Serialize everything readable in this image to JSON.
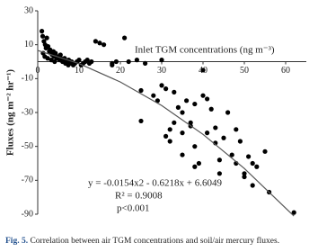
{
  "chart_data": {
    "type": "scatter",
    "y_label": "Fluxes (ng m⁻² hr⁻¹)",
    "x_label": "Inlet TGM concentrations (ng m⁻³)",
    "annotations": [
      "y = -0.0154x2 - 0.6218x + 6.6049",
      "R² = 0.9008",
      "p<0.001"
    ],
    "caption_label": "Fig. 5.",
    "caption": "Correlation between air TGM concentrations and soil/air mercury fluxes.",
    "xlim": [
      0,
      65
    ],
    "ylim": [
      -90,
      30
    ],
    "xticks": [
      0,
      10,
      20,
      30,
      40,
      50,
      60
    ],
    "yticks": [
      30,
      10,
      -10,
      -30,
      -50,
      -70,
      -90
    ],
    "color": "#000000",
    "x": [
      1,
      1.2,
      1.5,
      1.8,
      2,
      2.2,
      2.5,
      2.8,
      3,
      3.2,
      3.5,
      3.8,
      4,
      4.3,
      4.6,
      5,
      5.3,
      5.6,
      6,
      6.3,
      6.7,
      7,
      7.4,
      7.8,
      8.2,
      8.6,
      9,
      9.5,
      10,
      10.5,
      11,
      11.5,
      12,
      12.5,
      13,
      1.3,
      1.7,
      2.4,
      3.3,
      4.1,
      5.5,
      6.5,
      7.5,
      14,
      15,
      16,
      18,
      18,
      19,
      21,
      22,
      24,
      26,
      30,
      25,
      25,
      28,
      29,
      30,
      31,
      31,
      32,
      32,
      33,
      33,
      34,
      35,
      35,
      35,
      36,
      37,
      37,
      38,
      38,
      38,
      39,
      40,
      40,
      41,
      41,
      42,
      43,
      43,
      44,
      44,
      45,
      46,
      47,
      48,
      48,
      49,
      50,
      50,
      51,
      52,
      52,
      53,
      55,
      56,
      62
    ],
    "y": [
      18,
      15,
      12,
      10,
      8,
      14,
      9,
      6,
      7,
      5,
      4,
      6,
      3,
      5,
      2,
      3,
      1,
      2,
      0,
      1,
      -1,
      0,
      -2,
      -1,
      0,
      -2,
      -1,
      0,
      1,
      -2,
      -1,
      0,
      1,
      -1,
      0,
      5,
      3,
      2,
      1,
      0,
      4,
      2,
      1,
      12,
      11,
      10,
      -2,
      -1,
      0,
      14,
      0,
      1,
      -1,
      1,
      -17,
      -35,
      -20,
      -23,
      -14,
      -16,
      -44,
      -40,
      -47,
      -36,
      -18,
      -27,
      -30,
      -42,
      -55,
      -23,
      -36,
      -38,
      -25,
      -50,
      -62,
      -60,
      -5,
      -20,
      -22,
      -42,
      -28,
      -39,
      -48,
      -58,
      -66,
      -45,
      -30,
      -55,
      -40,
      -60,
      -47,
      -66,
      -68,
      -56,
      -60,
      -73,
      -62,
      -53,
      -77,
      -89
    ],
    "fit": {
      "x": [
        0,
        10,
        20,
        30,
        40,
        50,
        62
      ],
      "y": [
        6.6,
        -1.16,
        -12.0,
        -25.9,
        -42.9,
        -63.0,
        -91.1
      ],
      "color": "#555555"
    }
  }
}
